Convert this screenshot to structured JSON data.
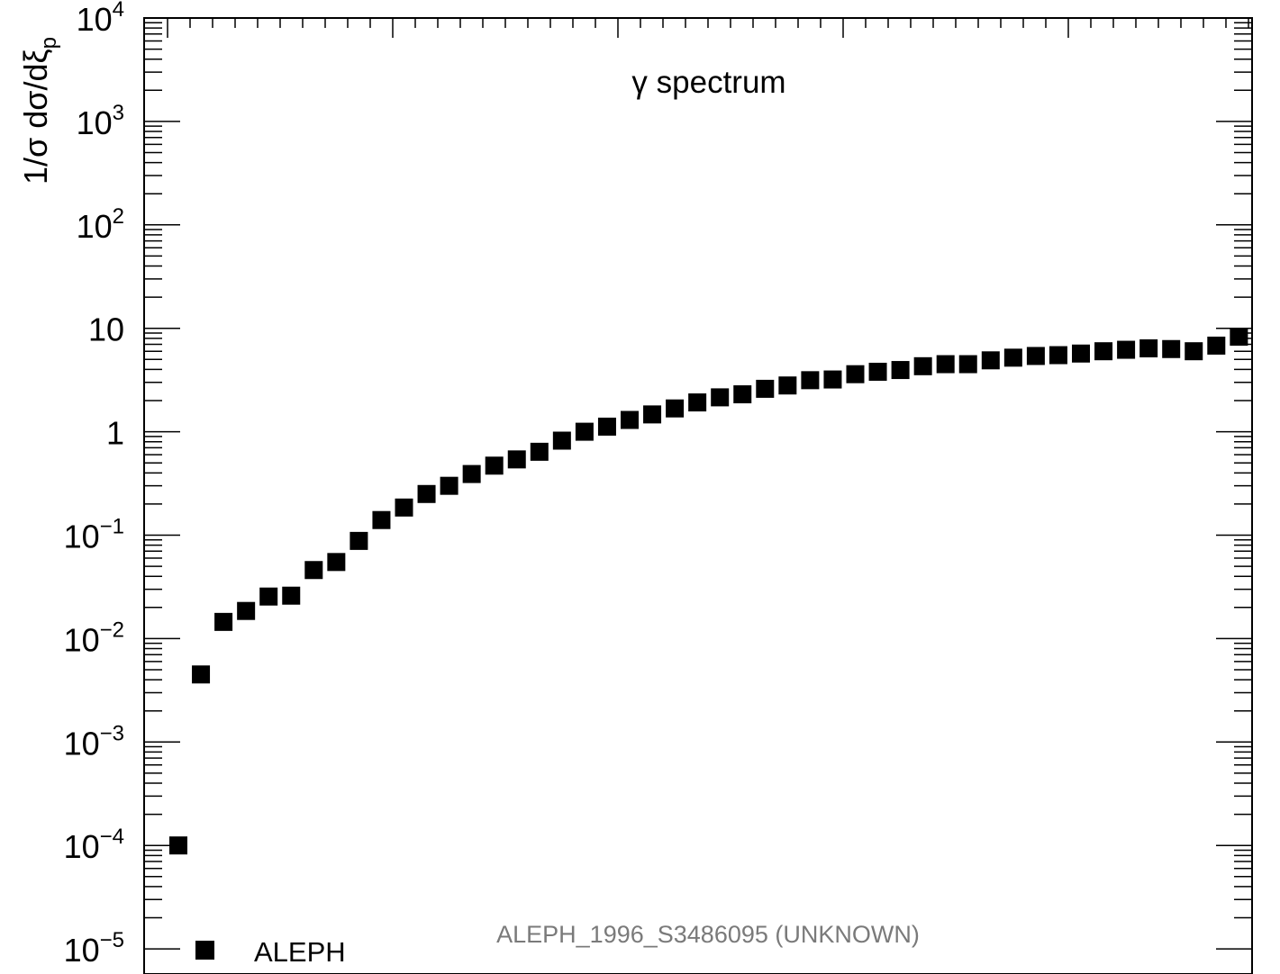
{
  "chart_data": {
    "type": "scatter",
    "title": "γ spectrum",
    "ylabel": "1/σ dσ/dξ",
    "ylabel_sub": "p",
    "yscale": "log",
    "ylim": [
      1e-05,
      10000
    ],
    "y_ticks": [
      {
        "value": 10000,
        "base": "10",
        "exp": "4"
      },
      {
        "value": 1000,
        "base": "10",
        "exp": "3"
      },
      {
        "value": 100,
        "base": "10",
        "exp": "2"
      },
      {
        "value": 10,
        "base": "10",
        "exp": ""
      },
      {
        "value": 1,
        "base": "1",
        "exp": ""
      },
      {
        "value": 0.1,
        "base": "10",
        "exp": "−1"
      },
      {
        "value": 0.01,
        "base": "10",
        "exp": "−2"
      },
      {
        "value": 0.001,
        "base": "10",
        "exp": "−3"
      },
      {
        "value": 0.0001,
        "base": "10",
        "exp": "−4"
      },
      {
        "value": 1e-05,
        "base": "10",
        "exp": "−5"
      }
    ],
    "legend": {
      "placement": "bottom-left",
      "label": "ALEPH"
    },
    "annotation": "ALEPH_1996_S3486095 (UNKNOWN)",
    "series": [
      {
        "name": "ALEPH",
        "marker": "square",
        "color": "#000000",
        "values": [
          0.0001,
          0.0045,
          0.0145,
          0.0185,
          0.0255,
          0.026,
          0.046,
          0.055,
          0.088,
          0.14,
          0.185,
          0.25,
          0.3,
          0.39,
          0.47,
          0.54,
          0.64,
          0.82,
          1.0,
          1.12,
          1.3,
          1.47,
          1.68,
          1.92,
          2.15,
          2.3,
          2.6,
          2.8,
          3.15,
          3.2,
          3.6,
          3.8,
          3.95,
          4.3,
          4.5,
          4.5,
          4.9,
          5.2,
          5.4,
          5.5,
          5.7,
          6.0,
          6.2,
          6.4,
          6.3,
          6.0,
          6.8,
          8.3
        ]
      }
    ]
  }
}
